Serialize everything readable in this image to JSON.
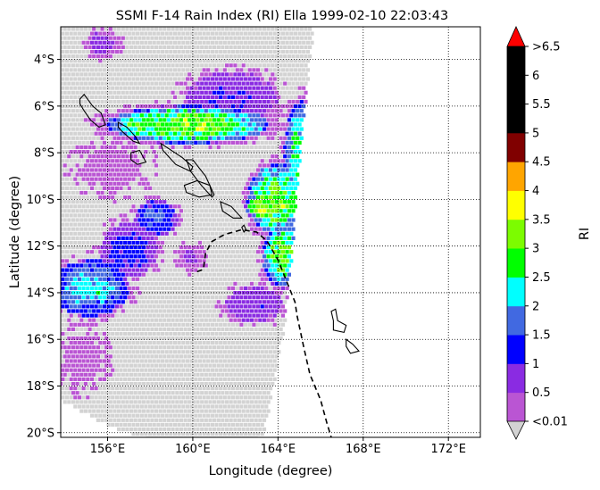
{
  "chart_data": {
    "type": "heatmap",
    "title": "SSMI F-14 Rain Index (RI) Ella 1999-02-10 22:03:43",
    "xlabel": "Longitude (degree)",
    "ylabel": "Latitude (degree)",
    "xlim": [
      153.8,
      173.5
    ],
    "ylim": [
      -20.2,
      -2.6
    ],
    "x_ticks": [
      156,
      160,
      164,
      168,
      172
    ],
    "x_tick_labels": [
      "156°E",
      "160°E",
      "164°E",
      "168°E",
      "172°E"
    ],
    "y_ticks": [
      -4,
      -6,
      -8,
      -10,
      -12,
      -14,
      -16,
      -18,
      -20
    ],
    "y_tick_labels": [
      "4°S",
      "6°S",
      "8°S",
      "10°S",
      "12°S",
      "14°S",
      "16°S",
      "18°S",
      "20°S"
    ],
    "grid": true,
    "colorbar": {
      "label": "RI",
      "bounds": [
        0.01,
        0.5,
        1,
        1.5,
        2,
        2.5,
        3,
        3.5,
        4,
        4.5,
        5,
        5.5,
        6,
        6.5
      ],
      "tick_labels": [
        "<0.01",
        "0.5",
        "1",
        "1.5",
        "2",
        "2.5",
        "3",
        "3.5",
        "4",
        "4.5",
        "5",
        "5.5",
        "6",
        ">6.5"
      ],
      "colors": [
        "#BA55D3",
        "#8A2BE2",
        "#0000FF",
        "#4169E1",
        "#00FFFF",
        "#00FF00",
        "#7CFC00",
        "#FFFF00",
        "#FFA500",
        "#800000",
        "#000000",
        "#000000",
        "#000000"
      ],
      "under_color": "#D3D3D3",
      "over_color": "#FF0000"
    },
    "swath": {
      "edge_line": [
        [
          165.7,
          -2.6
        ],
        [
          165.1,
          -7.5
        ],
        [
          164.7,
          -12.0
        ],
        [
          164.3,
          -15.5
        ],
        [
          163.8,
          -18.0
        ],
        [
          163.3,
          -20.2
        ]
      ],
      "bottom_edge": [
        [
          153.8,
          -18.6
        ],
        [
          156.0,
          -19.7
        ],
        [
          158.5,
          -20.5
        ],
        [
          161.0,
          -20.8
        ],
        [
          163.3,
          -20.2
        ]
      ]
    },
    "rain_cells": [
      {
        "lon": 159.8,
        "lat": -6.8,
        "rlon": 3.8,
        "rlat": 0.8,
        "ri": 3.2
      },
      {
        "lon": 157.5,
        "lat": -6.8,
        "rlon": 1.3,
        "rlat": 0.6,
        "ri": 3.0
      },
      {
        "lon": 161.8,
        "lat": -5.7,
        "rlon": 2.2,
        "rlat": 1.2,
        "ri": 1.0
      },
      {
        "lon": 163.9,
        "lat": -10.0,
        "rlon": 1.3,
        "rlat": 1.5,
        "ri": 3.2
      },
      {
        "lon": 163.3,
        "lat": -10.3,
        "rlon": 0.8,
        "rlat": 0.6,
        "ri": 3.7
      },
      {
        "lon": 165.1,
        "lat": -8.0,
        "rlon": 0.8,
        "rlat": 2.2,
        "ri": 2.7
      },
      {
        "lon": 164.2,
        "lat": -12.4,
        "rlon": 0.9,
        "rlat": 1.4,
        "ri": 3.1
      },
      {
        "lon": 156.2,
        "lat": -8.6,
        "rlon": 1.8,
        "rlat": 1.2,
        "ri": 0.4
      },
      {
        "lon": 155.2,
        "lat": -13.8,
        "rlon": 1.8,
        "rlat": 1.2,
        "ri": 2.2
      },
      {
        "lon": 157.0,
        "lat": -12.2,
        "rlon": 1.3,
        "rlat": 1.2,
        "ri": 1.3
      },
      {
        "lon": 158.3,
        "lat": -10.8,
        "rlon": 1.0,
        "rlat": 0.8,
        "ri": 1.6
      },
      {
        "lon": 155.8,
        "lat": -3.3,
        "rlon": 0.8,
        "rlat": 0.6,
        "ri": 0.7
      },
      {
        "lon": 154.8,
        "lat": -16.8,
        "rlon": 1.2,
        "rlat": 1.4,
        "ri": 0.4
      },
      {
        "lon": 162.9,
        "lat": -14.5,
        "rlon": 1.4,
        "rlat": 0.8,
        "ri": 0.9
      },
      {
        "lon": 160.0,
        "lat": -12.5,
        "rlon": 0.7,
        "rlat": 0.6,
        "ri": 0.6
      },
      {
        "lon": 165.4,
        "lat": -7.3,
        "rlon": 0.7,
        "rlat": 0.9,
        "ri": 0.5
      }
    ],
    "islands": [
      [
        [
          154.7,
          -5.7
        ],
        [
          154.9,
          -5.5
        ],
        [
          155.3,
          -6.0
        ],
        [
          155.7,
          -6.3
        ],
        [
          155.9,
          -6.8
        ],
        [
          155.6,
          -6.9
        ],
        [
          155.2,
          -6.6
        ],
        [
          154.9,
          -6.2
        ],
        [
          154.7,
          -5.9
        ]
      ],
      [
        [
          156.5,
          -6.7
        ],
        [
          156.9,
          -6.9
        ],
        [
          157.3,
          -7.3
        ],
        [
          157.5,
          -7.6
        ],
        [
          157.2,
          -7.5
        ],
        [
          156.7,
          -7.1
        ],
        [
          156.5,
          -6.9
        ]
      ],
      [
        [
          157.1,
          -8.0
        ],
        [
          157.5,
          -7.9
        ],
        [
          157.8,
          -8.4
        ],
        [
          157.4,
          -8.5
        ],
        [
          157.1,
          -8.3
        ]
      ],
      [
        [
          158.5,
          -7.6
        ],
        [
          159.5,
          -8.2
        ],
        [
          160.0,
          -8.6
        ],
        [
          159.9,
          -8.8
        ],
        [
          159.2,
          -8.5
        ],
        [
          158.6,
          -7.9
        ]
      ],
      [
        [
          159.7,
          -8.3
        ],
        [
          160.0,
          -8.3
        ],
        [
          160.6,
          -9.0
        ],
        [
          161.0,
          -9.8
        ],
        [
          160.9,
          -9.9
        ],
        [
          160.4,
          -9.4
        ],
        [
          159.9,
          -8.8
        ]
      ],
      [
        [
          159.6,
          -9.4
        ],
        [
          160.2,
          -9.2
        ],
        [
          160.8,
          -9.4
        ],
        [
          160.9,
          -9.8
        ],
        [
          160.3,
          -9.9
        ],
        [
          159.7,
          -9.7
        ]
      ],
      [
        [
          161.3,
          -10.1
        ],
        [
          161.8,
          -10.3
        ],
        [
          162.3,
          -10.8
        ],
        [
          161.9,
          -10.8
        ],
        [
          161.4,
          -10.5
        ]
      ],
      [
        [
          162.3,
          -11.2
        ],
        [
          162.4,
          -11.1
        ],
        [
          162.5,
          -11.3
        ],
        [
          162.4,
          -11.4
        ]
      ],
      [
        [
          166.5,
          -14.8
        ],
        [
          166.7,
          -14.7
        ],
        [
          166.8,
          -15.2
        ],
        [
          167.2,
          -15.4
        ],
        [
          167.1,
          -15.7
        ],
        [
          166.6,
          -15.6
        ],
        [
          166.6,
          -15.2
        ]
      ],
      [
        [
          167.2,
          -16.0
        ],
        [
          167.5,
          -16.2
        ],
        [
          167.8,
          -16.5
        ],
        [
          167.4,
          -16.6
        ],
        [
          167.2,
          -16.3
        ]
      ]
    ],
    "track": [
      [
        160.2,
        -13.1
      ],
      [
        160.5,
        -13.0
      ],
      [
        160.6,
        -12.3
      ],
      [
        160.9,
        -11.8
      ],
      [
        161.5,
        -11.5
      ],
      [
        162.3,
        -11.3
      ],
      [
        163.0,
        -11.4
      ],
      [
        163.5,
        -11.8
      ],
      [
        164.0,
        -12.6
      ],
      [
        164.4,
        -13.5
      ],
      [
        164.8,
        -14.4
      ],
      [
        164.9,
        -15.0
      ],
      [
        165.2,
        -16.3
      ],
      [
        165.5,
        -17.5
      ],
      [
        166.0,
        -18.6
      ],
      [
        166.3,
        -19.6
      ],
      [
        166.5,
        -20.2
      ]
    ]
  }
}
